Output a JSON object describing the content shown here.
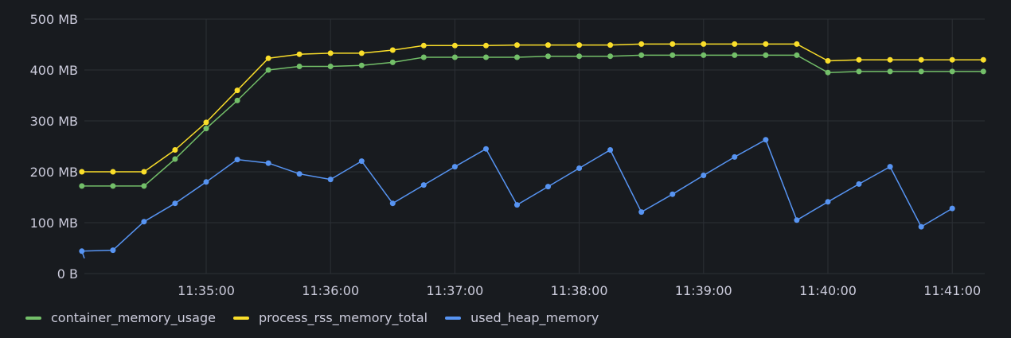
{
  "chart_data": {
    "type": "line",
    "xlabel": "",
    "ylabel": "",
    "x_start": "11:34:00",
    "x_step_seconds": 15,
    "x_ticks": [
      "11:35:00",
      "11:36:00",
      "11:37:00",
      "11:38:00",
      "11:39:00",
      "11:40:00",
      "11:41:00"
    ],
    "y_ticks": [
      {
        "value": 0,
        "label": "0 B"
      },
      {
        "value": 100,
        "label": "100 MB"
      },
      {
        "value": 200,
        "label": "200 MB"
      },
      {
        "value": 300,
        "label": "300 MB"
      },
      {
        "value": 400,
        "label": "400 MB"
      },
      {
        "value": 500,
        "label": "500 MB"
      }
    ],
    "y_unit": "MB",
    "ylim": [
      0,
      500
    ],
    "grid": true,
    "legend_position": "bottom-left",
    "series": [
      {
        "name": "container_memory_usage",
        "color": "#73bf69",
        "values": [
          172,
          172,
          172,
          225,
          285,
          340,
          400,
          407,
          407,
          409,
          415,
          425,
          425,
          425,
          425,
          427,
          427,
          427,
          429,
          429,
          429,
          429,
          429,
          429,
          395,
          397,
          397,
          397,
          397,
          397
        ]
      },
      {
        "name": "process_rss_memory_total",
        "color": "#fade2a",
        "values": [
          200,
          200,
          200,
          243,
          297,
          360,
          423,
          431,
          433,
          433,
          439,
          448,
          448,
          448,
          449,
          449,
          449,
          449,
          451,
          451,
          451,
          451,
          451,
          451,
          418,
          420,
          420,
          420,
          420,
          420
        ]
      },
      {
        "name": "used_heap_memory",
        "color": "#5794f2",
        "values": [
          44,
          46,
          102,
          138,
          180,
          224,
          217,
          196,
          185,
          221,
          138,
          174,
          210,
          245,
          135,
          171,
          207,
          243,
          121,
          156,
          193,
          229,
          263,
          105,
          141,
          176,
          210,
          92,
          128,
          null
        ]
      }
    ]
  }
}
